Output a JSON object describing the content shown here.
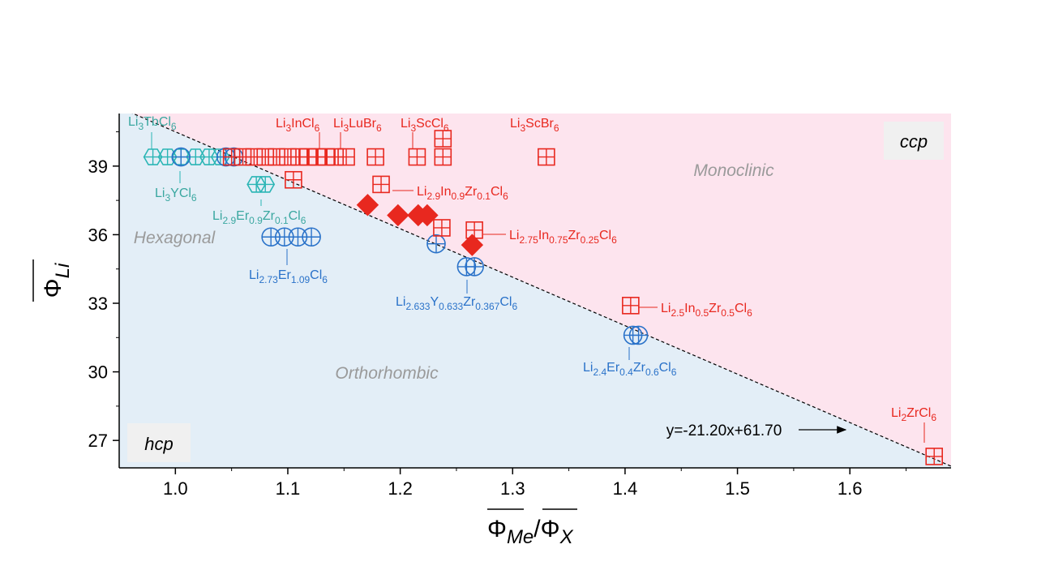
{
  "chart_data": {
    "type": "scatter",
    "xlabel": {
      "main": "Φ",
      "sub1": "Me",
      "sep": "/",
      "main2": "Φ",
      "sub2": "X"
    },
    "ylabel": {
      "main": "Φ",
      "sub": "Li"
    },
    "xlim": [
      0.95,
      1.69
    ],
    "ylim": [
      25.8,
      41.3
    ],
    "x_ticks": [
      "1.0",
      "1.1",
      "1.2",
      "1.3",
      "1.4",
      "1.5",
      "1.6"
    ],
    "y_ticks": [
      "27",
      "30",
      "33",
      "36",
      "39"
    ],
    "colors": {
      "upper_region": "#fde4ee",
      "lower_region": "#e3eef7",
      "red": "#e8281f",
      "blue": "#2a72c9",
      "teal": "#2ab5b5",
      "label_blue": "#2a72c9",
      "label_teal": "#3aa7a0",
      "region_text": "#9a9a9a"
    },
    "boundary": {
      "slope": -21.2,
      "intercept": 61.7,
      "equation": "y=-21.20x+61.70"
    },
    "regions": {
      "ccp": "ccp",
      "hcp": "hcp",
      "monoclinic": "Monoclinic",
      "hexagonal": "Hexagonal",
      "orthorhombic": "Orthorhombic"
    },
    "series": [
      {
        "marker": "hex",
        "color": "teal",
        "points": [
          [
            0.98,
            39.4
          ],
          [
            0.993,
            39.4
          ],
          [
            1.005,
            39.4
          ],
          [
            1.018,
            39.4
          ],
          [
            1.03,
            39.4
          ],
          [
            1.04,
            39.4
          ],
          [
            1.072,
            38.2
          ],
          [
            1.08,
            38.2
          ]
        ]
      },
      {
        "marker": "circle",
        "color": "blue",
        "points": [
          [
            1.005,
            39.4
          ],
          [
            1.045,
            39.4
          ],
          [
            1.052,
            39.4
          ],
          [
            1.085,
            35.9
          ],
          [
            1.097,
            35.9
          ],
          [
            1.109,
            35.9
          ],
          [
            1.121,
            35.9
          ],
          [
            1.232,
            35.6
          ],
          [
            1.259,
            34.6
          ],
          [
            1.266,
            34.6
          ],
          [
            1.407,
            31.6
          ],
          [
            1.412,
            31.6
          ]
        ]
      },
      {
        "marker": "square",
        "color": "red",
        "points": [
          [
            1.05,
            39.4
          ],
          [
            1.06,
            39.4
          ],
          [
            1.07,
            39.4
          ],
          [
            1.08,
            39.4
          ],
          [
            1.09,
            39.4
          ],
          [
            1.1,
            39.4
          ],
          [
            1.11,
            39.4
          ],
          [
            1.118,
            39.4
          ],
          [
            1.126,
            39.4
          ],
          [
            1.134,
            39.4
          ],
          [
            1.142,
            39.4
          ],
          [
            1.152,
            39.4
          ],
          [
            1.178,
            39.4
          ],
          [
            1.215,
            39.4
          ],
          [
            1.238,
            39.4
          ],
          [
            1.238,
            40.2
          ],
          [
            1.105,
            38.4
          ],
          [
            1.183,
            38.2
          ],
          [
            1.237,
            36.3
          ],
          [
            1.266,
            36.2
          ],
          [
            1.33,
            39.4
          ],
          [
            1.405,
            32.9
          ],
          [
            1.675,
            26.3
          ]
        ]
      },
      {
        "marker": "diamond",
        "color": "red",
        "points": [
          [
            1.171,
            37.3
          ],
          [
            1.198,
            36.85
          ],
          [
            1.216,
            36.85
          ],
          [
            1.224,
            36.85
          ],
          [
            1.264,
            35.55
          ]
        ]
      }
    ],
    "point_labels": [
      {
        "color": "label_teal",
        "parts": [
          [
            "Li",
            ""
          ],
          [
            "3",
            "sub"
          ],
          [
            "TbCl",
            ""
          ],
          [
            "6",
            "sub"
          ]
        ]
      },
      {
        "color": "label_teal",
        "parts": [
          [
            "Li",
            ""
          ],
          [
            "3",
            "sub"
          ],
          [
            "YCl",
            ""
          ],
          [
            "6",
            "sub"
          ]
        ]
      },
      {
        "color": "label_teal",
        "parts": [
          [
            "Li",
            ""
          ],
          [
            "2.9",
            "sub"
          ],
          [
            "Er",
            ""
          ],
          [
            "0.9",
            "sub"
          ],
          [
            "Zr",
            ""
          ],
          [
            "0.1",
            "sub"
          ],
          [
            "Cl",
            ""
          ],
          [
            "6",
            "sub"
          ]
        ]
      },
      {
        "color": "label_blue",
        "parts": [
          [
            "Li",
            ""
          ],
          [
            "2.73",
            "sub"
          ],
          [
            "Er",
            ""
          ],
          [
            "1.09",
            "sub"
          ],
          [
            "Cl",
            ""
          ],
          [
            "6",
            "sub"
          ]
        ]
      },
      {
        "color": "label_blue",
        "parts": [
          [
            "Li",
            ""
          ],
          [
            "2.633",
            "sub"
          ],
          [
            "Y",
            ""
          ],
          [
            "0.633",
            "sub"
          ],
          [
            "Zr",
            ""
          ],
          [
            "0.367",
            "sub"
          ],
          [
            "Cl",
            ""
          ],
          [
            "6",
            "sub"
          ]
        ]
      },
      {
        "color": "label_blue",
        "parts": [
          [
            "Li",
            ""
          ],
          [
            "2.4",
            "sub"
          ],
          [
            "Er",
            ""
          ],
          [
            "0.4",
            "sub"
          ],
          [
            "Zr",
            ""
          ],
          [
            "0.6",
            "sub"
          ],
          [
            "Cl",
            ""
          ],
          [
            "6",
            "sub"
          ]
        ]
      },
      {
        "color": "red",
        "parts": [
          [
            "Li",
            ""
          ],
          [
            "3",
            "sub"
          ],
          [
            "InCl",
            ""
          ],
          [
            "6",
            "sub"
          ]
        ]
      },
      {
        "color": "red",
        "parts": [
          [
            "Li",
            ""
          ],
          [
            "3",
            "sub"
          ],
          [
            "LuBr",
            ""
          ],
          [
            "6",
            "sub"
          ]
        ]
      },
      {
        "color": "red",
        "parts": [
          [
            "Li",
            ""
          ],
          [
            "3",
            "sub"
          ],
          [
            "ScCl",
            ""
          ],
          [
            "6",
            "sub"
          ]
        ]
      },
      {
        "color": "red",
        "parts": [
          [
            "Li",
            ""
          ],
          [
            "3",
            "sub"
          ],
          [
            "ScBr",
            ""
          ],
          [
            "6",
            "sub"
          ]
        ]
      },
      {
        "color": "red",
        "parts": [
          [
            "Li",
            ""
          ],
          [
            "2.9",
            "sub"
          ],
          [
            "In",
            ""
          ],
          [
            "0.9",
            "sub"
          ],
          [
            "Zr",
            ""
          ],
          [
            "0.1",
            "sub"
          ],
          [
            "Cl",
            ""
          ],
          [
            "6",
            "sub"
          ]
        ]
      },
      {
        "color": "red",
        "parts": [
          [
            "Li",
            ""
          ],
          [
            "2.75",
            "sub"
          ],
          [
            "In",
            ""
          ],
          [
            "0.75",
            "sub"
          ],
          [
            "Zr",
            ""
          ],
          [
            "0.25",
            "sub"
          ],
          [
            "Cl",
            ""
          ],
          [
            "6",
            "sub"
          ]
        ]
      },
      {
        "color": "red",
        "parts": [
          [
            "Li",
            ""
          ],
          [
            "2.5",
            "sub"
          ],
          [
            "In",
            ""
          ],
          [
            "0.5",
            "sub"
          ],
          [
            "Zr",
            ""
          ],
          [
            "0.5",
            "sub"
          ],
          [
            "Cl",
            ""
          ],
          [
            "6",
            "sub"
          ]
        ]
      },
      {
        "color": "red",
        "parts": [
          [
            "Li",
            ""
          ],
          [
            "2",
            "sub"
          ],
          [
            "ZrCl",
            ""
          ],
          [
            "6",
            "sub"
          ]
        ]
      }
    ]
  }
}
